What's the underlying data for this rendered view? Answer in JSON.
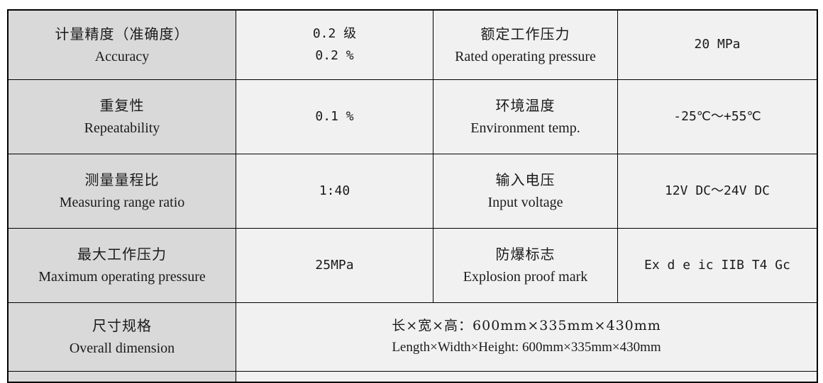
{
  "page": {
    "background": "#ffffff"
  },
  "table": {
    "border_color": "#000000",
    "param_column_bg": "#d9d9d9",
    "value_cell_bg": "#f1f1f1",
    "rows": [
      {
        "param1": {
          "zh": "计量精度（准确度）",
          "en": "Accuracy"
        },
        "value1": [
          "0.2 级",
          "0.2 %"
        ],
        "param2": {
          "zh": "额定工作压力",
          "en": "Rated operating pressure"
        },
        "value2": [
          "20 MPa"
        ]
      },
      {
        "param1": {
          "zh": "重复性",
          "en": "Repeatability"
        },
        "value1": [
          "0.1 %"
        ],
        "param2": {
          "zh": "环境温度",
          "en": "Environment temp."
        },
        "value2": [
          "-25℃～+55℃"
        ]
      },
      {
        "param1": {
          "zh": "测量量程比",
          "en": "Measuring range ratio"
        },
        "value1": [
          "1:40"
        ],
        "param2": {
          "zh": "输入电压",
          "en": "Input voltage"
        },
        "value2": [
          "12V DC～24V DC"
        ]
      },
      {
        "param1": {
          "zh": "最大工作压力",
          "en": "Maximum operating pressure"
        },
        "value1": [
          "25MPa"
        ],
        "param2": {
          "zh": "防爆标志",
          "en": "Explosion proof mark"
        },
        "value2": [
          "Ex d e ic IIB T4 Gc"
        ]
      },
      {
        "param1": {
          "zh": "尺寸规格",
          "en": "Overall dimension"
        },
        "span_value": [
          "长×宽×高：600mm×335mm×430mm",
          "Length×Width×Height: 600mm×335mm×430mm"
        ]
      }
    ]
  }
}
